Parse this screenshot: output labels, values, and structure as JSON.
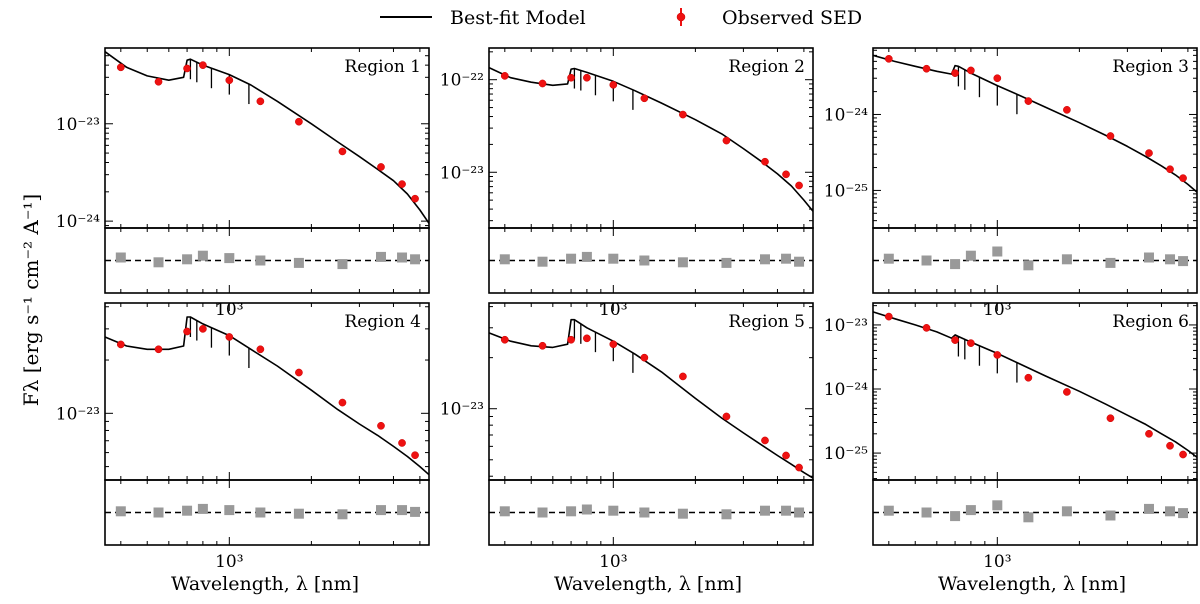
{
  "chart_data": {
    "type": "line",
    "figure": {
      "legend": [
        {
          "label": "Best-fit Model",
          "marker": "line",
          "color": "#000000"
        },
        {
          "label": "Observed SED",
          "marker": "point-errorbar",
          "color": "#ee1111"
        }
      ],
      "legend_position": "top-center",
      "ylabel": "Fλ [erg s⁻¹ cm⁻² A⁻¹]",
      "xlabel": "Wavelength, λ [nm]",
      "x_tick_label": "10³",
      "x_scale": "log",
      "y_scale": "log",
      "xlim": [
        350,
        5400
      ],
      "residual_color": "#999999"
    },
    "panels": [
      {
        "title": "Region 1",
        "ylim": [
          8.5e-25,
          6e-23
        ],
        "yticks": [
          {
            "value": 1e-23,
            "label": "10⁻²³"
          },
          {
            "value": 1e-24,
            "label": "10⁻²⁴"
          }
        ],
        "x": [
          400,
          550,
          700,
          800,
          1000,
          1300,
          1800,
          2600,
          3600,
          4300,
          4800
        ],
        "flux": [
          3.8e-23,
          2.7e-23,
          3.7e-23,
          4e-23,
          2.8e-23,
          1.7e-23,
          1.05e-23,
          5.2e-24,
          3.6e-24,
          2.4e-24,
          1.7e-24
        ],
        "residuals": [
          0.05,
          -0.03,
          0.02,
          0.08,
          0.04,
          0.0,
          -0.04,
          -0.06,
          0.06,
          0.05,
          0.02
        ],
        "model_x": [
          350,
          420,
          500,
          600,
          680,
          700,
          720,
          800,
          1000,
          1200,
          1500,
          2000,
          2500,
          3000,
          3500,
          4000,
          4500,
          5000,
          5400
        ],
        "model_y": [
          5.5e-23,
          3.8e-23,
          3.1e-23,
          2.8e-23,
          3e-23,
          4.5e-23,
          4.6e-23,
          4e-23,
          3.2e-23,
          2.5e-23,
          1.7e-23,
          1e-23,
          6.5e-24,
          4.6e-24,
          3.4e-24,
          2.6e-24,
          1.9e-24,
          1.3e-24,
          9.5e-25
        ]
      },
      {
        "title": "Region 2",
        "ylim": [
          2.5e-24,
          2.2e-22
        ],
        "yticks": [
          {
            "value": 1e-22,
            "label": "10⁻²²"
          },
          {
            "value": 1e-23,
            "label": "10⁻²³"
          }
        ],
        "x": [
          400,
          550,
          700,
          800,
          1000,
          1300,
          1800,
          2600,
          3600,
          4300,
          4800
        ],
        "flux": [
          1.1e-22,
          9.1e-23,
          1.05e-22,
          1.05e-22,
          8.8e-23,
          6.3e-23,
          4.2e-23,
          2.2e-23,
          1.3e-23,
          9.5e-24,
          7.2e-24
        ],
        "residuals": [
          0.02,
          -0.02,
          0.03,
          0.06,
          0.03,
          0.0,
          -0.03,
          -0.04,
          0.02,
          0.03,
          -0.02
        ],
        "model_x": [
          350,
          420,
          500,
          600,
          680,
          700,
          720,
          800,
          1000,
          1200,
          1500,
          2000,
          2500,
          3000,
          3500,
          4000,
          4500,
          5000,
          5400
        ],
        "model_y": [
          1.35e-22,
          1.05e-22,
          9.4e-23,
          8.7e-23,
          9e-23,
          1.3e-22,
          1.32e-22,
          1.2e-22,
          9.6e-23,
          7.6e-23,
          5.6e-23,
          3.7e-23,
          2.6e-23,
          1.8e-23,
          1.3e-23,
          9.6e-24,
          7.1e-24,
          5e-24,
          3.8e-24
        ]
      },
      {
        "title": "Region 3",
        "ylim": [
          3.2e-26,
          7.5e-24
        ],
        "yticks": [
          {
            "value": 1e-24,
            "label": "10⁻²⁴"
          },
          {
            "value": 1e-25,
            "label": "10⁻²⁵"
          }
        ],
        "x": [
          400,
          550,
          700,
          800,
          1000,
          1300,
          1800,
          2600,
          3600,
          4300,
          4800
        ],
        "flux": [
          5.4e-24,
          4e-24,
          3.5e-24,
          3.8e-24,
          3e-24,
          1.5e-24,
          1.15e-24,
          5.2e-25,
          3.1e-25,
          1.9e-25,
          1.45e-25
        ],
        "residuals": [
          0.03,
          0.0,
          -0.06,
          0.08,
          0.15,
          -0.08,
          0.02,
          -0.04,
          0.05,
          0.02,
          -0.01
        ],
        "model_x": [
          350,
          420,
          500,
          600,
          680,
          700,
          720,
          800,
          1000,
          1200,
          1500,
          2000,
          2500,
          3000,
          3500,
          4000,
          4500,
          5000,
          5400
        ],
        "model_y": [
          6e-24,
          5e-24,
          4.3e-24,
          3.7e-24,
          3.4e-24,
          4.4e-24,
          4.3e-24,
          3.5e-24,
          2.4e-24,
          1.8e-24,
          1.25e-24,
          7.8e-25,
          5.3e-25,
          3.8e-25,
          2.8e-25,
          2.1e-25,
          1.6e-25,
          1.2e-25,
          9.5e-26
        ]
      },
      {
        "title": "Region 4",
        "ylim": [
          4.2e-24,
          4.2e-23
        ],
        "yticks": [
          {
            "value": 1e-23,
            "label": "10⁻²³"
          }
        ],
        "x": [
          400,
          550,
          700,
          800,
          1000,
          1300,
          1800,
          2600,
          3600,
          4300,
          4800
        ],
        "flux": [
          2.45e-23,
          2.3e-23,
          2.9e-23,
          3e-23,
          2.7e-23,
          2.3e-23,
          1.7e-23,
          1.15e-23,
          8.5e-24,
          6.8e-24,
          5.8e-24
        ],
        "residuals": [
          0.02,
          0.0,
          0.03,
          0.06,
          0.04,
          0.0,
          -0.02,
          -0.03,
          0.04,
          0.04,
          0.01
        ],
        "model_x": [
          350,
          420,
          500,
          600,
          680,
          700,
          720,
          800,
          1000,
          1200,
          1500,
          2000,
          2500,
          3000,
          3500,
          4000,
          4500,
          5000,
          5400
        ],
        "model_y": [
          2.7e-23,
          2.4e-23,
          2.3e-23,
          2.3e-23,
          2.4e-23,
          3.5e-23,
          3.5e-23,
          3.2e-23,
          2.75e-23,
          2.3e-23,
          1.85e-23,
          1.35e-23,
          1.05e-23,
          8.7e-24,
          7.5e-24,
          6.5e-24,
          5.7e-24,
          5e-24,
          4.5e-24
        ]
      },
      {
        "title": "Region 5",
        "ylim": [
          3.8e-24,
          4.2e-23
        ],
        "yticks": [
          {
            "value": 1e-23,
            "label": "10⁻²³"
          }
        ],
        "x": [
          400,
          550,
          700,
          800,
          1000,
          1300,
          1800,
          2600,
          3600,
          4300,
          4800
        ],
        "flux": [
          2.55e-23,
          2.35e-23,
          2.55e-23,
          2.6e-23,
          2.4e-23,
          2e-23,
          1.55e-23,
          9e-24,
          6.5e-24,
          5.3e-24,
          4.5e-24
        ],
        "residuals": [
          0.02,
          0.0,
          0.02,
          0.05,
          0.03,
          0.0,
          -0.02,
          -0.03,
          0.03,
          0.03,
          0.0
        ],
        "model_x": [
          350,
          420,
          500,
          600,
          680,
          700,
          720,
          800,
          1000,
          1200,
          1500,
          2000,
          2500,
          3000,
          3500,
          4000,
          4500,
          5000,
          5400
        ],
        "model_y": [
          2.8e-23,
          2.5e-23,
          2.35e-23,
          2.3e-23,
          2.4e-23,
          3.35e-23,
          3.35e-23,
          3e-23,
          2.5e-23,
          2.1e-23,
          1.65e-23,
          1.15e-23,
          8.8e-24,
          7.2e-24,
          6.1e-24,
          5.3e-24,
          4.7e-24,
          4.2e-24,
          3.9e-24
        ]
      },
      {
        "title": "Region 6",
        "ylim": [
          3.8e-26,
          2.2e-23
        ],
        "yticks": [
          {
            "value": 1e-23,
            "label": "10⁻²³"
          },
          {
            "value": 1e-24,
            "label": "10⁻²⁴"
          },
          {
            "value": 1e-25,
            "label": "10⁻²⁵"
          }
        ],
        "x": [
          400,
          550,
          700,
          800,
          1000,
          1300,
          1800,
          2600,
          3600,
          4300,
          4800
        ],
        "flux": [
          1.35e-23,
          9e-24,
          5.8e-24,
          5.2e-24,
          3.4e-24,
          1.5e-24,
          9e-25,
          3.5e-25,
          2e-25,
          1.3e-25,
          9.5e-26
        ],
        "residuals": [
          0.03,
          0.0,
          -0.06,
          0.04,
          0.12,
          -0.08,
          0.02,
          -0.05,
          0.06,
          0.02,
          -0.01
        ],
        "model_x": [
          350,
          420,
          500,
          600,
          680,
          700,
          720,
          800,
          1000,
          1200,
          1500,
          2000,
          2500,
          3000,
          3500,
          4000,
          4500,
          5000,
          5400
        ],
        "model_y": [
          1.6e-23,
          1.25e-23,
          1e-23,
          7.8e-24,
          6.2e-24,
          7e-24,
          6.6e-24,
          5.4e-24,
          3.6e-24,
          2.5e-24,
          1.6e-24,
          9.2e-25,
          5.8e-25,
          3.9e-25,
          2.8e-25,
          2e-25,
          1.5e-25,
          1.1e-25,
          8.6e-26
        ]
      }
    ]
  }
}
